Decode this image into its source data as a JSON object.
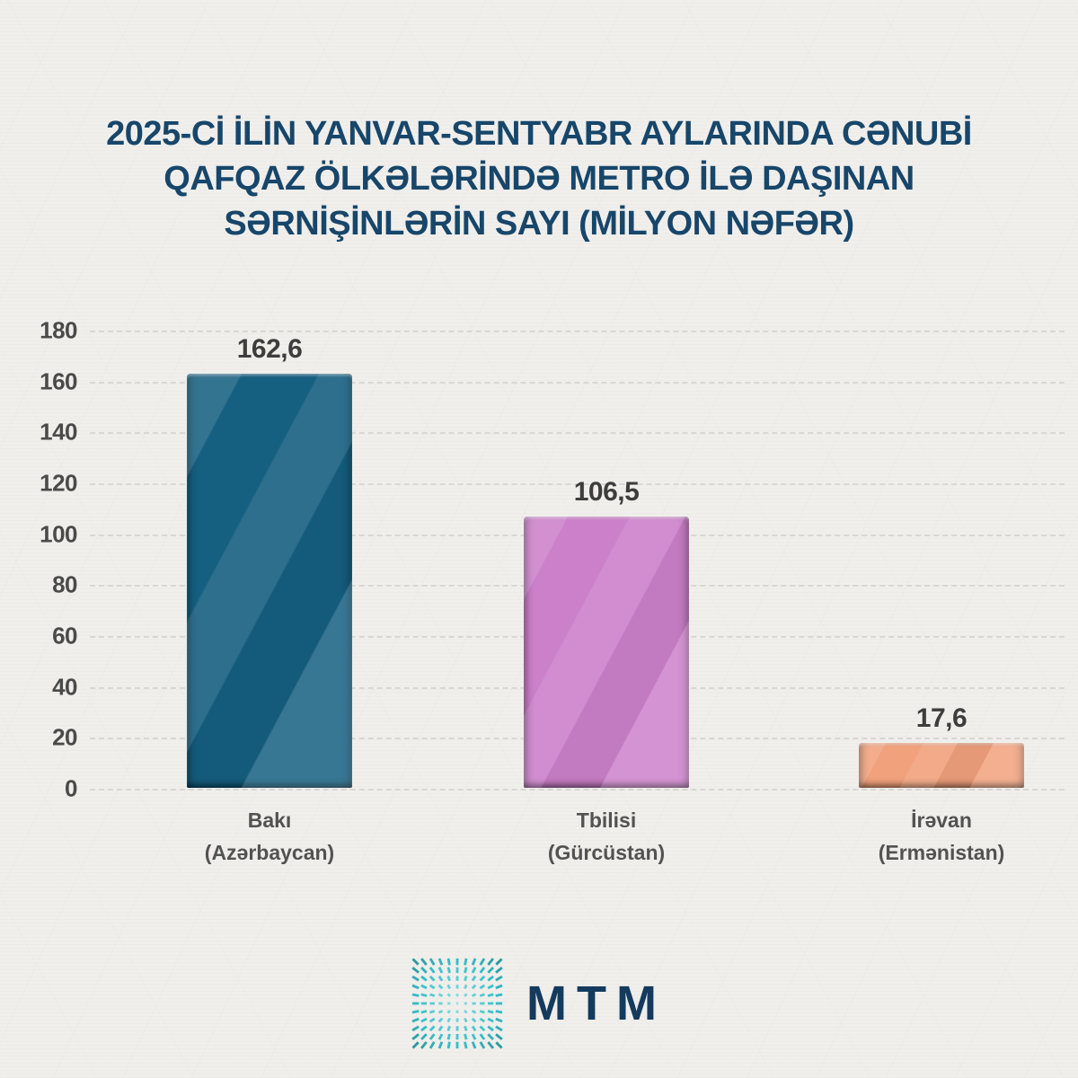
{
  "page": {
    "background_color": "#f0efec"
  },
  "title": {
    "lines": [
      "2025-Cİ İLİN YANVAR-SENTYABR AYLARINDA CƏNUBİ",
      "QAFQAZ ÖLKƏLƏRİNDƏ METRO İLƏ DAŞINAN",
      "SƏRNİŞİNLƏRİN SAYI (MİLYON NƏFƏR)"
    ],
    "color": "#17466a"
  },
  "chart_data": {
    "type": "bar",
    "title": "2025-ci ilin yanvar-sentyabr aylarında Cənubi Qafqaz ölkələrində metro ilə daşınan sərnişinlərin sayı (milyon nəfər)",
    "categories": [
      "Bakı (Azərbaycan)",
      "Tbilisi (Gürcüstan)",
      "İrəvan (Ermənistan)"
    ],
    "category_lines": [
      {
        "city": "Bakı",
        "country": "(Azərbaycan)"
      },
      {
        "city": "Tbilisi",
        "country": "(Gürcüstan)"
      },
      {
        "city": "İrəvan",
        "country": "(Ermənistan)"
      }
    ],
    "values": [
      162.6,
      106.5,
      17.6
    ],
    "value_labels": [
      "162,6",
      "106,5",
      "17,6"
    ],
    "bar_colors": [
      "#155f80",
      "#cc80ca",
      "#f1a17c"
    ],
    "yticks": [
      "180",
      "160",
      "140",
      "120",
      "100",
      "80",
      "60",
      "40",
      "20",
      "0"
    ],
    "ylim": [
      0,
      180
    ],
    "xlabel": "",
    "ylabel": "",
    "grid": "dashed-horizontal",
    "legend": "none"
  },
  "footer": {
    "logo_text": "MTM",
    "logo_icon": "mtm-radial-burst-logo",
    "logo_teal": "#2ab5b8",
    "text_color": "#143a5e"
  }
}
